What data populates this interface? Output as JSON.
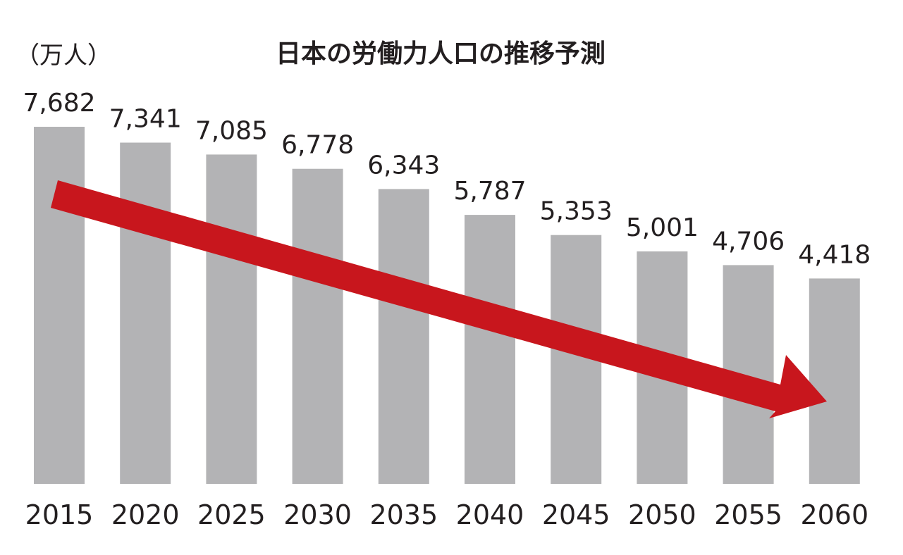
{
  "chart_data": {
    "type": "bar",
    "title": "日本の労働力人口の推移予測",
    "unit_label": "（万人）",
    "categories": [
      "2015",
      "2020",
      "2025",
      "2030",
      "2035",
      "2040",
      "2045",
      "2050",
      "2055",
      "2060"
    ],
    "values": [
      7682,
      7341,
      7085,
      6778,
      6343,
      5787,
      5353,
      5001,
      4706,
      4418
    ],
    "value_labels": [
      "7,682",
      "7,341",
      "7,085",
      "6,778",
      "6,343",
      "5,787",
      "5,353",
      "5,001",
      "4,706",
      "4,418"
    ],
    "grid": false,
    "legend": "none",
    "trend_arrow": "downward",
    "colors": {
      "bar": "#b3b3b5",
      "arrow": "#c8161d",
      "text": "#231f20"
    }
  }
}
